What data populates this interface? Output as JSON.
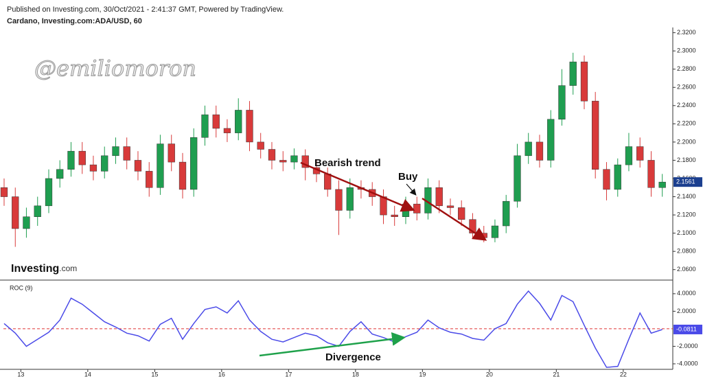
{
  "header": {
    "published": "Published on Investing.com, 30/Oct/2021 - 2:41:37 GMT, Powered by TradingView."
  },
  "watermark": "@emiliomoron",
  "logo": {
    "brand": "Investing",
    "suffix": ".com"
  },
  "annotations": {
    "trend": "Bearish trend",
    "buy": "Buy",
    "divergence": "Divergence"
  },
  "chart_data": [
    {
      "type": "candlestick",
      "title": "Cardano, Investing.com:ADA/USD, 60",
      "up_color": "#1f9e50",
      "down_color": "#d83a3a",
      "label_color": "#1b3f8f",
      "x": [
        12.75,
        12.917,
        13.083,
        13.25,
        13.417,
        13.583,
        13.75,
        13.917,
        14.083,
        14.25,
        14.417,
        14.583,
        14.75,
        14.917,
        15.083,
        15.25,
        15.417,
        15.583,
        15.75,
        15.917,
        16.083,
        16.25,
        16.417,
        16.583,
        16.75,
        16.917,
        17.083,
        17.25,
        17.417,
        17.583,
        17.75,
        17.917,
        18.083,
        18.25,
        18.417,
        18.583,
        18.75,
        18.917,
        19.083,
        19.25,
        19.417,
        19.583,
        19.75,
        19.917,
        20.083,
        20.25,
        20.417,
        20.583,
        20.75,
        20.917,
        21.083,
        21.25,
        21.417,
        21.583,
        21.75,
        21.917,
        22.083,
        22.25,
        22.417,
        22.583
      ],
      "open": [
        2.15,
        2.14,
        2.105,
        2.118,
        2.13,
        2.16,
        2.17,
        2.19,
        2.175,
        2.168,
        2.185,
        2.195,
        2.18,
        2.168,
        2.15,
        2.198,
        2.178,
        2.148,
        2.205,
        2.23,
        2.215,
        2.21,
        2.235,
        2.2,
        2.192,
        2.18,
        2.178,
        2.185,
        2.172,
        2.165,
        2.148,
        2.125,
        2.15,
        2.148,
        2.14,
        2.12,
        2.118,
        2.132,
        2.122,
        2.15,
        2.13,
        2.128,
        2.115,
        2.1,
        2.095,
        2.108,
        2.135,
        2.185,
        2.2,
        2.18,
        2.225,
        2.262,
        2.288,
        2.245,
        2.17,
        2.148,
        2.175,
        2.195,
        2.18,
        2.15
      ],
      "high": [
        2.16,
        2.15,
        2.128,
        2.14,
        2.17,
        2.18,
        2.2,
        2.2,
        2.185,
        2.195,
        2.205,
        2.205,
        2.19,
        2.178,
        2.208,
        2.208,
        2.188,
        2.215,
        2.24,
        2.24,
        2.225,
        2.248,
        2.245,
        2.21,
        2.2,
        2.19,
        2.193,
        2.192,
        2.18,
        2.172,
        2.158,
        2.16,
        2.158,
        2.156,
        2.148,
        2.13,
        2.14,
        2.14,
        2.16,
        2.158,
        2.138,
        2.136,
        2.122,
        2.108,
        2.115,
        2.142,
        2.198,
        2.21,
        2.208,
        2.235,
        2.28,
        2.298,
        2.295,
        2.255,
        2.178,
        2.182,
        2.21,
        2.205,
        2.19,
        2.165
      ],
      "low": [
        2.13,
        2.085,
        2.095,
        2.108,
        2.122,
        2.15,
        2.162,
        2.165,
        2.158,
        2.16,
        2.176,
        2.17,
        2.158,
        2.14,
        2.142,
        2.168,
        2.138,
        2.14,
        2.196,
        2.205,
        2.2,
        2.202,
        2.19,
        2.182,
        2.17,
        2.168,
        2.17,
        2.158,
        2.156,
        2.14,
        2.098,
        2.116,
        2.138,
        2.13,
        2.11,
        2.108,
        2.11,
        2.114,
        2.115,
        2.122,
        2.12,
        2.108,
        2.094,
        2.09,
        2.09,
        2.1,
        2.128,
        2.176,
        2.172,
        2.172,
        2.218,
        2.252,
        2.236,
        2.16,
        2.136,
        2.14,
        2.168,
        2.172,
        2.14,
        2.14
      ],
      "close": [
        2.14,
        2.105,
        2.118,
        2.13,
        2.16,
        2.17,
        2.19,
        2.175,
        2.168,
        2.185,
        2.195,
        2.18,
        2.168,
        2.15,
        2.198,
        2.178,
        2.148,
        2.205,
        2.23,
        2.215,
        2.21,
        2.235,
        2.2,
        2.192,
        2.18,
        2.178,
        2.185,
        2.172,
        2.165,
        2.148,
        2.125,
        2.15,
        2.148,
        2.14,
        2.12,
        2.118,
        2.132,
        2.122,
        2.15,
        2.13,
        2.128,
        2.115,
        2.1,
        2.095,
        2.108,
        2.135,
        2.185,
        2.2,
        2.18,
        2.225,
        2.262,
        2.288,
        2.245,
        2.17,
        2.148,
        2.175,
        2.195,
        2.18,
        2.15,
        2.1561
      ],
      "last_label": "2.1561",
      "xlim": [
        12.74,
        22.74
      ],
      "ylim": [
        2.05,
        2.325
      ],
      "yticks": [
        {
          "value": 2.06,
          "label": "2.0600"
        },
        {
          "value": 2.08,
          "label": "2.0800"
        },
        {
          "value": 2.1,
          "label": "2.1000"
        },
        {
          "value": 2.12,
          "label": "2.1200"
        },
        {
          "value": 2.14,
          "label": "2.1400"
        },
        {
          "value": 2.16,
          "label": "2.1600"
        },
        {
          "value": 2.18,
          "label": "2.1800"
        },
        {
          "value": 2.2,
          "label": "2.2000"
        },
        {
          "value": 2.22,
          "label": "2.2200"
        },
        {
          "value": 2.24,
          "label": "2.2400"
        },
        {
          "value": 2.26,
          "label": "2.2600"
        },
        {
          "value": 2.28,
          "label": "2.2800"
        },
        {
          "value": 2.3,
          "label": "2.3000"
        },
        {
          "value": 2.32,
          "label": "2.3200"
        }
      ]
    },
    {
      "type": "line",
      "title": "ROC (9)",
      "color": "#4a4ae8",
      "x": [
        12.75,
        12.917,
        13.083,
        13.25,
        13.417,
        13.583,
        13.75,
        13.917,
        14.083,
        14.25,
        14.417,
        14.583,
        14.75,
        14.917,
        15.083,
        15.25,
        15.417,
        15.583,
        15.75,
        15.917,
        16.083,
        16.25,
        16.417,
        16.583,
        16.75,
        16.917,
        17.083,
        17.25,
        17.417,
        17.583,
        17.75,
        17.917,
        18.083,
        18.25,
        18.417,
        18.583,
        18.75,
        18.917,
        19.083,
        19.25,
        19.417,
        19.583,
        19.75,
        19.917,
        20.083,
        20.25,
        20.417,
        20.583,
        20.75,
        20.917,
        21.083,
        21.25,
        21.417,
        21.583,
        21.75,
        21.917,
        22.083,
        22.25,
        22.417,
        22.583
      ],
      "values": [
        0.6,
        -0.5,
        -2.0,
        -1.2,
        -0.4,
        1.0,
        3.5,
        2.8,
        1.8,
        0.8,
        0.2,
        -0.5,
        -0.8,
        -1.4,
        0.5,
        1.2,
        -1.2,
        0.6,
        2.2,
        2.5,
        1.8,
        3.2,
        1.0,
        -0.3,
        -1.2,
        -1.5,
        -1.0,
        -0.5,
        -0.8,
        -1.6,
        -2.0,
        -0.3,
        0.8,
        -0.6,
        -1.0,
        -1.5,
        -0.9,
        -0.4,
        1.0,
        0.1,
        -0.4,
        -0.6,
        -1.1,
        -1.3,
        0,
        0.6,
        2.8,
        4.3,
        2.9,
        1.0,
        3.8,
        3.1,
        0.4,
        -2.2,
        -4.4,
        -4.3,
        -1.2,
        1.8,
        -0.5,
        -0.0811
      ],
      "last_label": "-0.0811",
      "hline": 0,
      "hline_color": "#e03030",
      "xlim": [
        12.74,
        22.74
      ],
      "xticks": [
        13,
        14,
        15,
        16,
        17,
        18,
        19,
        20,
        21,
        22
      ],
      "ylim": [
        -4.55,
        5.4
      ],
      "yticks": [
        {
          "value": -4,
          "label": "-4.0000"
        },
        {
          "value": -2,
          "label": "-2.0000"
        },
        {
          "value": 2,
          "label": "2.0000"
        },
        {
          "value": 4,
          "label": "4.0000"
        }
      ]
    }
  ]
}
